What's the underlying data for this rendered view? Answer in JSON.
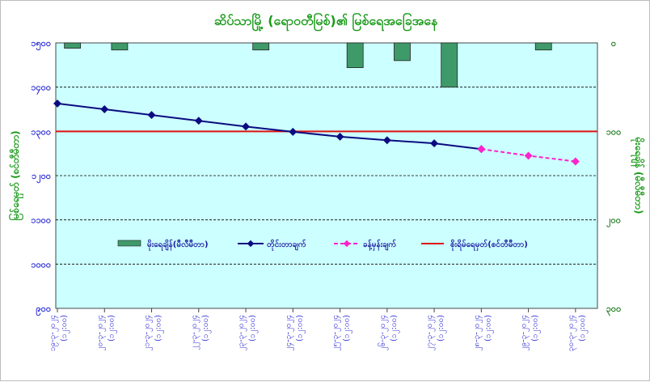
{
  "chart_data": {
    "type": "bar+line",
    "title": "ဆိပ်သာမြို့ (ရောဝတီမြစ်)၏ မြစ်ရေအခြေအနေ",
    "ylabel_left": "မြစ်ရေမှတ် (စင်တီမီတာ)",
    "ylabel_right": "မိုးရေချိန် (မီလီမီတာ)",
    "categories": [
      "၁၉-၃-၂၀၂၄",
      "၂၀-၃-၂၀၂၄",
      "၂၁-၃-၂၀၂၄",
      "၂၂-၃-၂၀၂၄",
      "၂၃-၃-၂၀၂၄",
      "၂၄-၃-၂၀၂၄",
      "၂၅-၃-၂၀၂၄",
      "၂၆-၃-၂၀၂၄",
      "၂၇-၃-၂၀၂၄",
      "၂၈-၃-၂၀၂၄",
      "၂၉-၃-၂၀၂၄",
      "၃၀-၃-၂၀၂၄"
    ],
    "x_sublabel": "(၁၂:၀၀)",
    "ylim_left": [
      900,
      1500
    ],
    "yticks_left": [
      "၉၀၀",
      "၁၀၀၀",
      "၁၁၀၀",
      "၁၂၀၀",
      "၁၃၀၀",
      "၁၄၀၀",
      "၁၅၀၀"
    ],
    "ylim_right": [
      0,
      300
    ],
    "yticks_right": [
      "၀",
      "၁၀၀",
      "၂၀၀",
      "၃၀၀"
    ],
    "series": [
      {
        "name": "မိုးရေချိန်(မီလီမီတာ)",
        "type": "bar",
        "axis": "right",
        "color": "#3f9a6a",
        "values": [
          6,
          8,
          0,
          0,
          8,
          0,
          28,
          20,
          50,
          0,
          8,
          0
        ]
      },
      {
        "name": "တိုင်းတာချက်",
        "type": "line",
        "axis": "left",
        "color": "#0b0b80",
        "values": [
          1363,
          1350,
          1337,
          1324,
          1311,
          1299,
          1288,
          1280,
          1273,
          1260,
          null,
          null
        ]
      },
      {
        "name": "ခန့်မှန်းချက်",
        "type": "line",
        "axis": "left",
        "color": "#ff22cc",
        "dashed": true,
        "values": [
          null,
          null,
          null,
          null,
          null,
          null,
          null,
          null,
          null,
          1260,
          1245,
          1232
        ]
      },
      {
        "name": "စိုးရိမ်ရေမှတ်(စင်တီမီတာ)",
        "type": "hline",
        "axis": "left",
        "color": "#e01010",
        "value": 1300
      }
    ],
    "grid": true,
    "legend": "inside-middle"
  }
}
